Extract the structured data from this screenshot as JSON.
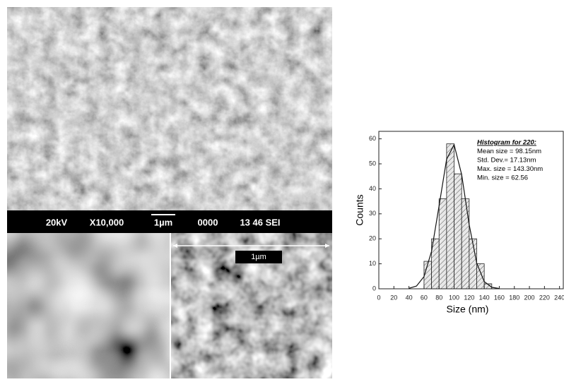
{
  "sem": {
    "info_bar": [
      "20kV",
      "X10,000",
      "1µm",
      "0000",
      "13 46 SEI"
    ],
    "inset_scale": "1µm"
  },
  "chart_data": {
    "type": "histogram",
    "xlabel": "Size (nm)",
    "ylabel": "Counts",
    "bins": [
      60,
      70,
      80,
      90,
      100,
      110,
      120,
      130,
      140,
      150
    ],
    "values": [
      11,
      20,
      36,
      58,
      46,
      36,
      20,
      10,
      2
    ],
    "fit": {
      "x": [
        40,
        50,
        60,
        70,
        80,
        90,
        100,
        110,
        120,
        130,
        140,
        150,
        160
      ],
      "values": [
        0.2,
        1.1,
        4.9,
        15.0,
        33.1,
        51.8,
        57.7,
        45.7,
        25.7,
        10.3,
        2.9,
        0.6,
        0.1
      ]
    },
    "xlim": [
      0,
      245
    ],
    "ylim": [
      0,
      63
    ],
    "xticks": [
      0,
      20,
      40,
      60,
      80,
      100,
      120,
      140,
      160,
      180,
      200,
      220,
      240
    ],
    "yticks": [
      0,
      10,
      20,
      30,
      40,
      50,
      60
    ],
    "annotations": [
      "Histogram for 220:",
      "Mean size = 98.15nm",
      "Std. Dev.= 17.13nm",
      "Max. size = 143.30nm",
      "Min. size = 62.56"
    ]
  }
}
